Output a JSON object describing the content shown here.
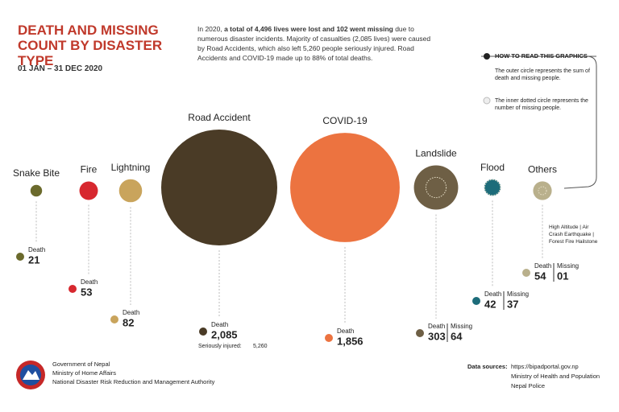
{
  "header": {
    "title": "DEATH AND MISSING COUNT BY DISASTER TYPE",
    "date_range": "01 JAN – 31 DEC 2020",
    "summary": [
      {
        "text": "In 2020, ",
        "bold": false
      },
      {
        "text": "a total of 4,496 lives were lost and 102 went missing",
        "bold": true
      },
      {
        "text": " due to numerous disaster incidents. Majority of casualties (2,085 lives) were caused by Road Accidents, which also left 5,260 people seriously injured. Road Accidents and COVID-19 made up to 88% of total deaths.",
        "bold": false
      }
    ]
  },
  "how_to_read": {
    "title": "HOW TO READ THIS GRAPHICS",
    "items": [
      "The outer circle represents the sum of death and missing people.",
      "The inner dotted circle represents the number of missing people."
    ]
  },
  "labels": {
    "death": "Death",
    "missing": "Missing"
  },
  "disasters": [
    {
      "name": "Snake Bite",
      "color": "#6b6a2c",
      "death": 21
    },
    {
      "name": "Fire",
      "color": "#d7282f",
      "death": 53
    },
    {
      "name": "Lightning",
      "color": "#c9a45c",
      "death": 82
    },
    {
      "name": "Road Accident",
      "color": "#4a3b26",
      "death": {
        "value": 2085,
        "label": "2,085"
      },
      "injured": {
        "text": "Seriously injured:",
        "count": {
          "value": 5260,
          "label": "5,260"
        }
      }
    },
    {
      "name": "COVID-19",
      "color": "#ec7340",
      "death": {
        "value": 1856,
        "label": "1,856"
      }
    },
    {
      "name": "Landslide",
      "color": "#6e5f45",
      "death": 303,
      "missing": 64
    },
    {
      "name": "Flood",
      "color": "#1d6c7a",
      "death": 42,
      "missing": 37
    },
    {
      "name": "Others",
      "color": "#b9b08c",
      "death": 54,
      "missing": {
        "value": 1,
        "label": "01"
      },
      "note": "High Altitude | Air Crash Earthquake | Forest Fire Hailstone"
    }
  ],
  "footer": {
    "government": [
      "Government of Nepal",
      "Ministry of Home Affairs",
      "National Disaster Risk Reduction and Management Authority"
    ],
    "sources_label": "Data sources:",
    "sources": [
      "https://bipadportal.gov.np",
      "Ministry of Health and Population",
      "Nepal Police"
    ]
  }
}
